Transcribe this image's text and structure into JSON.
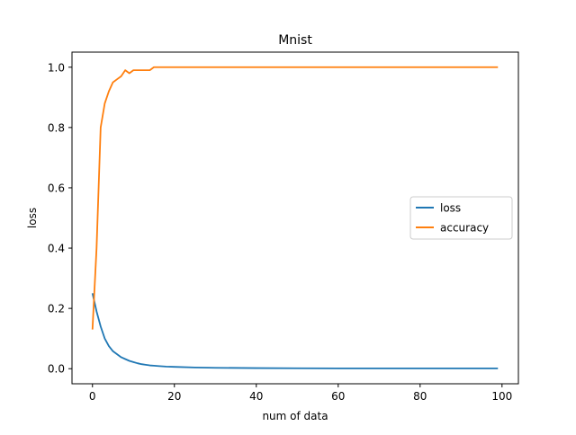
{
  "chart_data": {
    "type": "line",
    "title": "Mnist",
    "xlabel": "num of data",
    "ylabel": "loss",
    "xlim": [
      -5,
      104
    ],
    "ylim": [
      -0.05,
      1.05
    ],
    "xticks": [
      0,
      20,
      40,
      60,
      80,
      100
    ],
    "yticks": [
      0.0,
      0.2,
      0.4,
      0.6,
      0.8,
      1.0
    ],
    "xtick_labels": [
      "0",
      "20",
      "40",
      "60",
      "80",
      "100"
    ],
    "ytick_labels": [
      "0.0",
      "0.2",
      "0.4",
      "0.6",
      "0.8",
      "1.0"
    ],
    "grid": false,
    "legend": "center-right",
    "series": [
      {
        "name": "loss",
        "color": "#1f77b4",
        "x": [
          0,
          1,
          2,
          3,
          4,
          5,
          6,
          7,
          8,
          9,
          10,
          11,
          12,
          13,
          14,
          15,
          16,
          18,
          20,
          25,
          30,
          40,
          50,
          60,
          70,
          80,
          90,
          99
        ],
        "y": [
          0.25,
          0.19,
          0.14,
          0.1,
          0.075,
          0.058,
          0.048,
          0.038,
          0.032,
          0.026,
          0.022,
          0.018,
          0.015,
          0.013,
          0.011,
          0.01,
          0.009,
          0.007,
          0.006,
          0.004,
          0.003,
          0.002,
          0.0015,
          0.001,
          0.001,
          0.001,
          0.001,
          0.001
        ]
      },
      {
        "name": "accuracy",
        "color": "#ff7f0e",
        "x": [
          0,
          1,
          2,
          3,
          4,
          5,
          6,
          7,
          8,
          9,
          10,
          11,
          12,
          13,
          14,
          15,
          16,
          20,
          30,
          40,
          50,
          60,
          70,
          80,
          90,
          99
        ],
        "y": [
          0.13,
          0.4,
          0.8,
          0.88,
          0.92,
          0.95,
          0.96,
          0.97,
          0.99,
          0.98,
          0.99,
          0.99,
          0.99,
          0.99,
          0.99,
          1.0,
          1.0,
          1.0,
          1.0,
          1.0,
          1.0,
          1.0,
          1.0,
          1.0,
          1.0,
          1.0
        ]
      }
    ]
  }
}
